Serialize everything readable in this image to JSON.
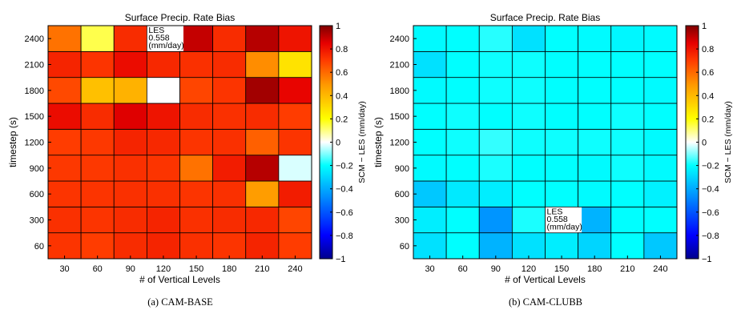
{
  "chart_data": [
    {
      "type": "heatmap",
      "title": "Surface Precip. Rate Bias",
      "xlabel": "# of Vertical Levels",
      "ylabel": "timestep (s)",
      "colorbar_label": "SCM − LES (mm/day)",
      "caption": "(a) CAM-BASE",
      "x": [
        "30",
        "60",
        "90",
        "120",
        "150",
        "180",
        "210",
        "240"
      ],
      "y": [
        "60",
        "300",
        "600",
        "900",
        "1200",
        "1500",
        "1800",
        "2100",
        "2400"
      ],
      "clim": [
        -1,
        1
      ],
      "colorbar_ticks": [
        "1",
        "0.8",
        "0.6",
        "0.4",
        "0.2",
        "0",
        "−0.2",
        "−0.4",
        "−0.6",
        "−0.8",
        "−1"
      ],
      "colormap": "blue-cyan-white-yellow-red-darkred",
      "values": [
        [
          0.72,
          0.7,
          0.74,
          0.76,
          0.73,
          0.72,
          0.76,
          0.7
        ],
        [
          0.73,
          0.72,
          0.74,
          0.76,
          0.73,
          0.74,
          0.75,
          0.68
        ],
        [
          0.72,
          0.72,
          0.73,
          0.73,
          0.72,
          0.73,
          0.48,
          0.78
        ],
        [
          0.71,
          0.71,
          0.73,
          0.72,
          0.58,
          0.78,
          0.92,
          -0.03
        ],
        [
          0.7,
          0.71,
          0.76,
          0.75,
          0.72,
          0.73,
          0.62,
          0.72
        ],
        [
          0.82,
          0.74,
          0.86,
          0.8,
          0.74,
          0.73,
          0.74,
          0.7
        ],
        [
          0.67,
          0.38,
          0.42,
          0.0,
          0.68,
          0.72,
          0.95,
          0.84
        ],
        [
          0.76,
          0.72,
          0.82,
          0.75,
          0.73,
          0.74,
          0.52,
          0.28
        ],
        [
          0.58,
          0.14,
          0.74,
          null,
          0.9,
          0.74,
          0.92,
          0.8
        ]
      ],
      "annotation": {
        "lines": [
          "LES",
          "0.558",
          "(mm/day)"
        ],
        "cell": [
          "120",
          "2400"
        ]
      }
    },
    {
      "type": "heatmap",
      "title": "Surface Precip. Rate Bias",
      "xlabel": "# of Vertical Levels",
      "ylabel": "timestep (s)",
      "colorbar_label": "SCM − LES (mm/day)",
      "caption": "(b) CAM-CLUBB",
      "x": [
        "30",
        "60",
        "90",
        "120",
        "150",
        "180",
        "210",
        "240"
      ],
      "y": [
        "60",
        "300",
        "600",
        "900",
        "1200",
        "1500",
        "1800",
        "2100",
        "2400"
      ],
      "clim": [
        -1,
        1
      ],
      "colorbar_ticks": [
        "1",
        "0.8",
        "0.6",
        "0.4",
        "0.2",
        "0",
        "−0.2",
        "−0.4",
        "−0.6",
        "−0.8",
        "−1"
      ],
      "colormap": "blue-cyan-white-yellow-red-darkred",
      "values": [
        [
          -0.27,
          -0.2,
          -0.38,
          -0.27,
          -0.24,
          -0.3,
          -0.2,
          -0.33
        ],
        [
          -0.24,
          -0.2,
          -0.45,
          -0.18,
          null,
          -0.38,
          -0.2,
          -0.2
        ],
        [
          -0.33,
          -0.25,
          -0.24,
          -0.2,
          -0.2,
          -0.21,
          -0.2,
          -0.23
        ],
        [
          -0.21,
          -0.2,
          -0.18,
          -0.2,
          -0.2,
          -0.21,
          -0.19,
          -0.21
        ],
        [
          -0.2,
          -0.19,
          -0.16,
          -0.19,
          -0.19,
          -0.19,
          -0.19,
          -0.21
        ],
        [
          -0.2,
          -0.19,
          -0.2,
          -0.19,
          -0.2,
          -0.2,
          -0.19,
          -0.2
        ],
        [
          -0.21,
          -0.2,
          -0.19,
          -0.19,
          -0.2,
          -0.2,
          -0.2,
          -0.21
        ],
        [
          -0.27,
          -0.2,
          -0.19,
          -0.19,
          -0.2,
          -0.2,
          -0.2,
          -0.2
        ],
        [
          -0.21,
          -0.2,
          -0.17,
          -0.27,
          -0.2,
          -0.21,
          -0.22,
          -0.21
        ]
      ],
      "annotation": {
        "lines": [
          "LES",
          "0.558",
          "(mm/day)"
        ],
        "cell": [
          "150",
          "300"
        ]
      }
    }
  ]
}
